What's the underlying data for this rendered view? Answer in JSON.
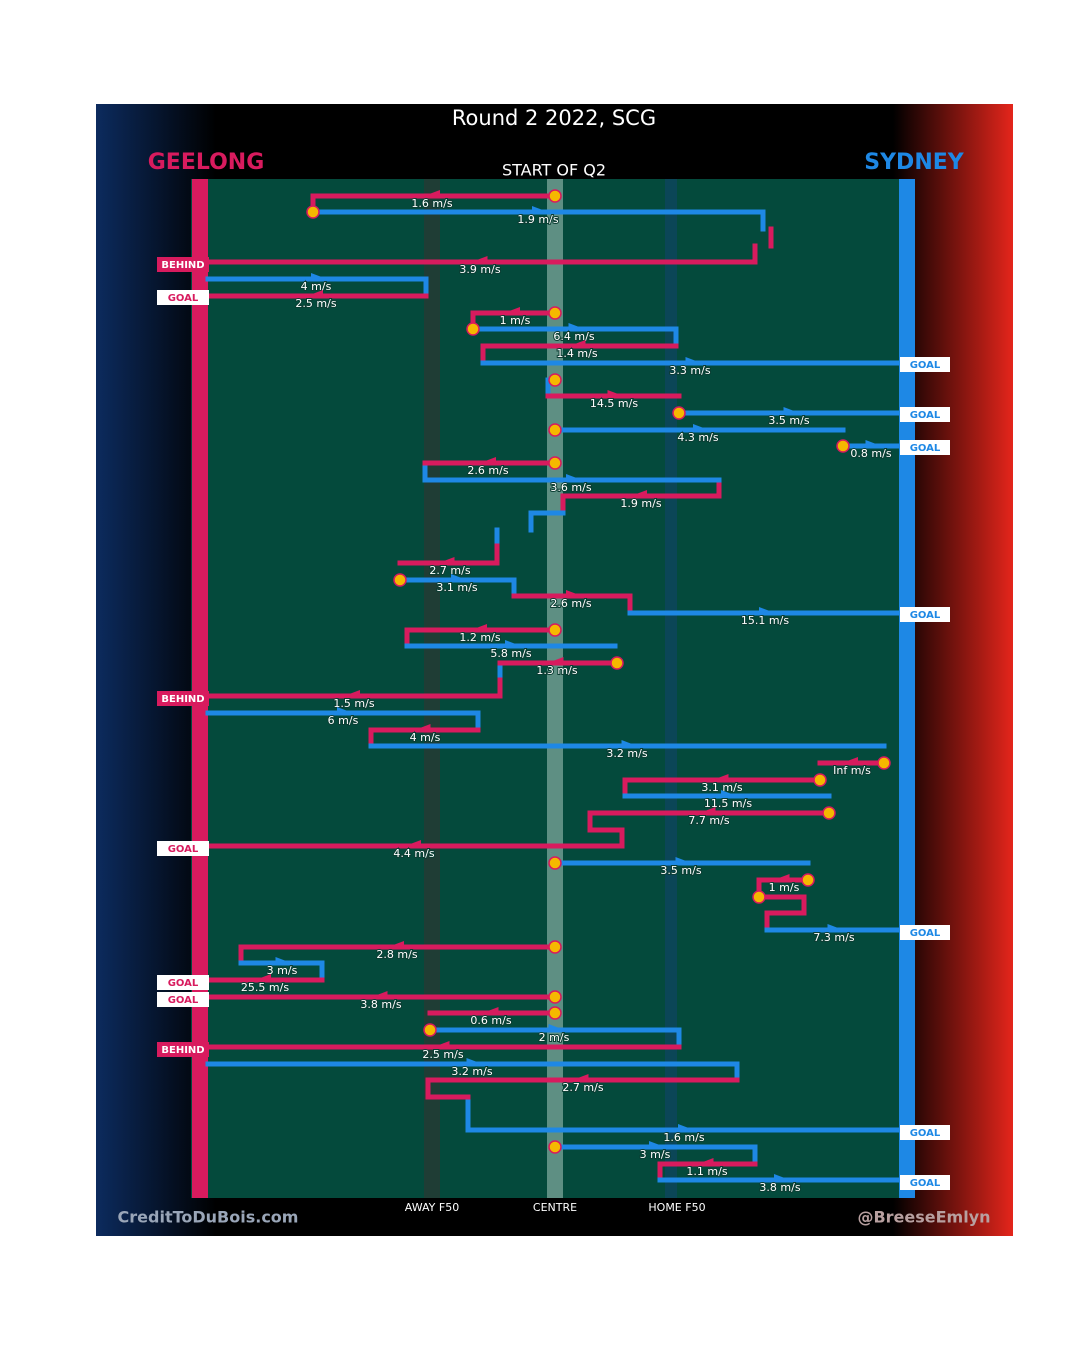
{
  "header": {
    "title": "Round 2 2022, SCG",
    "subtitle": "START OF Q2",
    "left_team": "GEELONG",
    "right_team": "SYDNEY"
  },
  "field_labels": [
    "AWAY F50",
    "CENTRE",
    "HOME F50"
  ],
  "credits": [
    "CreditToDuBois.com",
    "@BreeseEmlyn"
  ],
  "kicks": [
    "1.6 m/s",
    "1.9 m/s",
    "3.9 m/s",
    "4 m/s",
    "2.5 m/s",
    "1 m/s",
    "6.4 m/s",
    "1.4 m/s",
    "3.3 m/s",
    "14.5 m/s",
    "3.5 m/s",
    "4.3 m/s",
    "0.8 m/s",
    "2.6 m/s",
    "3.6 m/s",
    "1.9 m/s",
    "2.7 m/s",
    "3.1 m/s",
    "2.6 m/s",
    "15.1 m/s",
    "1.2 m/s",
    "5.8 m/s",
    "1.3 m/s",
    "1.5 m/s",
    "6 m/s",
    "4 m/s",
    "3.2 m/s",
    "Inf m/s",
    "3.1 m/s",
    "11.5 m/s",
    "7.7 m/s",
    "4.4 m/s",
    "3.5 m/s",
    "1 m/s",
    "7.3 m/s",
    "2.8 m/s",
    "3 m/s",
    "25.5 m/s",
    "3.8 m/s",
    "0.6 m/s",
    "2 m/s",
    "2.5 m/s",
    "3.2 m/s",
    "2.7 m/s",
    "1.6 m/s",
    "3 m/s",
    "1.1 m/s",
    "3.8 m/s"
  ],
  "outcomes_left": [
    "BEHIND",
    "GOAL",
    "BEHIND",
    "GOAL",
    "GOAL",
    "GOAL",
    "BEHIND"
  ],
  "outcomes_right": [
    "GOAL",
    "GOAL",
    "GOAL",
    "GOAL",
    "GOAL",
    "GOAL",
    "GOAL"
  ]
}
